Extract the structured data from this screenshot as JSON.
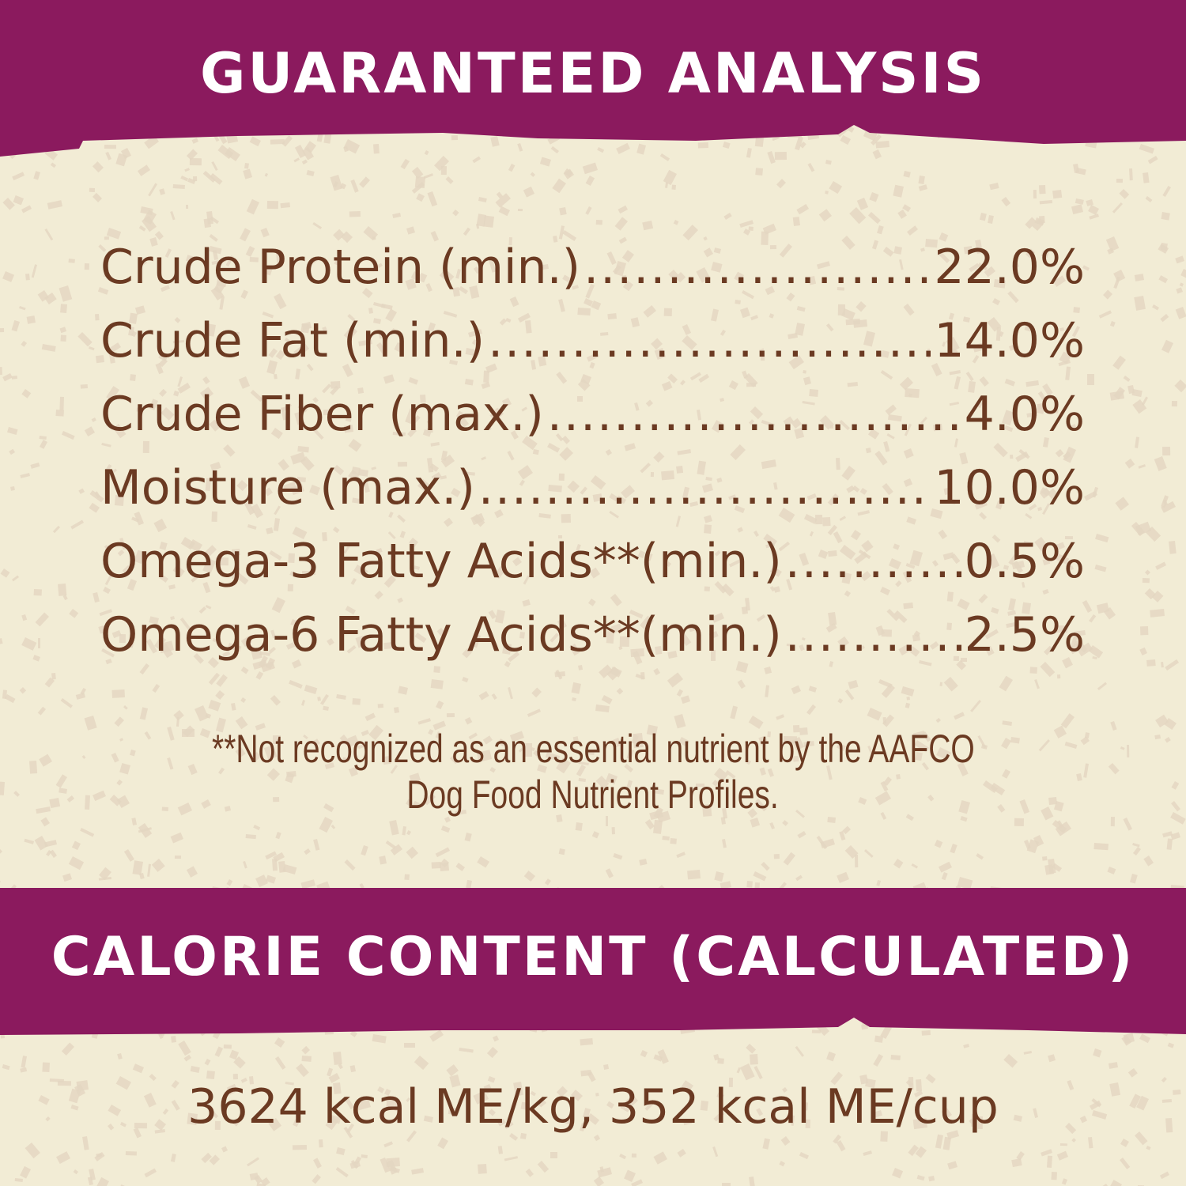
{
  "colors": {
    "banner": "#8b1a5e",
    "background": "#f2ecd5",
    "text": "#6b3a22",
    "speckle": "#e3d6c0"
  },
  "guaranteed_analysis": {
    "title": "GUARANTEED ANALYSIS",
    "rows": [
      {
        "label": "Crude Protein (min.)",
        "value": "22.0%"
      },
      {
        "label": "Crude Fat (min.)",
        "value": "14.0%"
      },
      {
        "label": "Crude Fiber (max.)",
        "value": "4.0%"
      },
      {
        "label": "Moisture (max.)",
        "value": "10.0%"
      },
      {
        "label": "Omega-3 Fatty Acids**(min.)",
        "value": "0.5%"
      },
      {
        "label": "Omega-6 Fatty Acids**(min.)",
        "value": "2.5%"
      }
    ],
    "footnote_line1": "**Not recognized as an essential nutrient by the AAFCO",
    "footnote_line2": "Dog Food Nutrient Profiles."
  },
  "calorie_content": {
    "title": "CALORIE CONTENT (CALCULATED)",
    "value": "3624 kcal ME/kg, 352 kcal ME/cup"
  }
}
